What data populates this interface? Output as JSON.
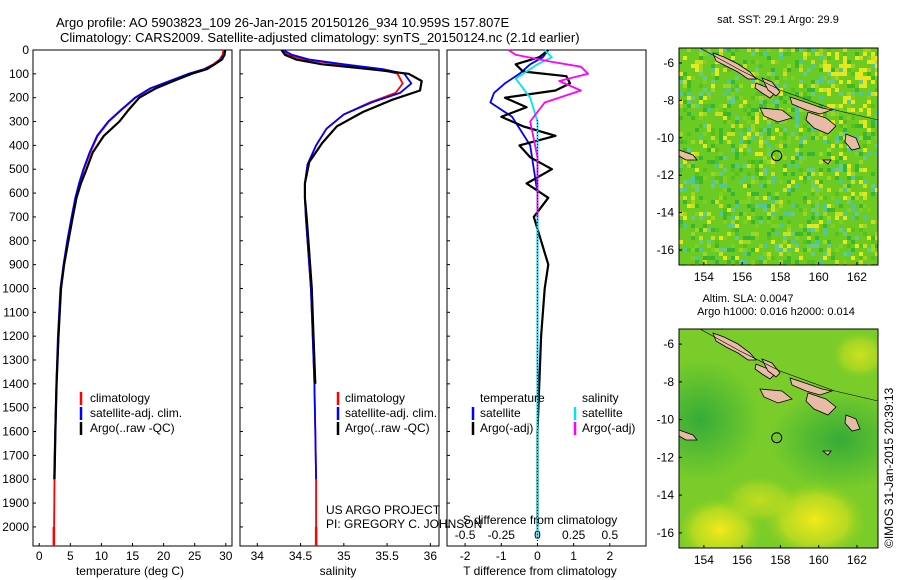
{
  "header": {
    "line1": "Argo profile: AO 5903823_109 26-Jan-2015 20150126_934 10.959S 157.807E",
    "line2": "Climatology: CARS2009. Satellite-adjusted climatology: synTS_20150124.nc (2.1d earlier)"
  },
  "colors": {
    "climatology": "#ff0000",
    "satellite": "#0000ff",
    "argo": "#000000",
    "sal_satellite": "#00e5ee",
    "sal_argo": "#ff00ff",
    "land": "#e8bba6"
  },
  "credit": {
    "project": "US ARGO PROJECT",
    "pi": "PI: GREGORY C. JOHNSON",
    "imos": "©IMOS 31-Jan-2015 20:39:13"
  },
  "chart_data": [
    {
      "type": "line",
      "id": "temperature",
      "xlabel": "temperature (deg C)",
      "ylabel": "",
      "xlim": [
        -1,
        31
      ],
      "ylim": [
        2080,
        0
      ],
      "xticks": [
        "0",
        "5",
        "10",
        "15",
        "20",
        "25",
        "30"
      ],
      "yticks": [
        "0",
        "100",
        "200",
        "300",
        "400",
        "500",
        "600",
        "700",
        "800",
        "900",
        "1000",
        "1100",
        "1200",
        "1300",
        "1400",
        "1500",
        "1600",
        "1700",
        "1800",
        "1900",
        "2000"
      ],
      "legend": [
        "climatology",
        "satellite-adj. clim.",
        "Argo(..raw -QC)"
      ],
      "series": [
        {
          "name": "climatology",
          "color": "climatology",
          "x": [
            29.6,
            29.5,
            29,
            28,
            26.5,
            24,
            21,
            18,
            15.5,
            13.3,
            11.2,
            9.4,
            8.2,
            7.2,
            6.5,
            5.9,
            5.3,
            4.6,
            4.0,
            3.5,
            3.1,
            2.8,
            2.6,
            2.45,
            2.4,
            2.35
          ],
          "y": [
            0,
            20,
            40,
            60,
            80,
            100,
            130,
            160,
            200,
            250,
            300,
            360,
            430,
            500,
            560,
            620,
            700,
            800,
            900,
            1000,
            1200,
            1400,
            1600,
            1800,
            2000,
            2050
          ]
        },
        {
          "name": "satellite-adj. clim.",
          "color": "satellite",
          "x": [
            29.9,
            29.7,
            29.2,
            28.2,
            26.6,
            24,
            21,
            17.9,
            15.4,
            13.2,
            11.1,
            9.3,
            8.1,
            7.1,
            6.4,
            5.8,
            5.2,
            4.5,
            3.9,
            3.4,
            3.0,
            2.75,
            2.55,
            2.4
          ],
          "y": [
            0,
            20,
            40,
            60,
            80,
            100,
            130,
            160,
            200,
            250,
            300,
            360,
            430,
            500,
            560,
            620,
            700,
            800,
            900,
            1000,
            1200,
            1400,
            1600,
            1800
          ]
        },
        {
          "name": "Argo(..raw -QC)",
          "color": "argo",
          "x": [
            29.9,
            29.8,
            29.4,
            28.2,
            27.0,
            24.5,
            21.6,
            18.8,
            16.1,
            14.4,
            12.9,
            10.4,
            8.6,
            7.6,
            6.7,
            6.0,
            5.4,
            4.7,
            4.0,
            3.5,
            3.1,
            2.8,
            2.6,
            2.45
          ],
          "y": [
            0,
            20,
            40,
            60,
            80,
            100,
            130,
            160,
            200,
            250,
            300,
            360,
            430,
            500,
            560,
            620,
            700,
            800,
            900,
            1000,
            1200,
            1400,
            1600,
            1800
          ]
        }
      ]
    },
    {
      "type": "line",
      "id": "salinity",
      "xlabel": "salinity",
      "xlim": [
        33.8,
        36.1
      ],
      "ylim": [
        2080,
        0
      ],
      "xticks": [
        "34",
        "34.5",
        "35",
        "35.5",
        "36"
      ],
      "legend": [
        "climatology",
        "satellite-adj. clim.",
        "Argo(..raw -QC)"
      ],
      "series": [
        {
          "name": "climatology",
          "color": "climatology",
          "x": [
            34.3,
            34.35,
            34.55,
            34.95,
            35.4,
            35.62,
            35.68,
            35.6,
            35.3,
            35.0,
            34.8,
            34.68,
            34.58,
            34.55,
            34.55,
            34.56,
            34.58,
            34.6,
            34.62,
            34.64,
            34.66,
            34.67,
            34.68,
            34.68,
            34.68
          ],
          "y": [
            0,
            20,
            40,
            60,
            80,
            100,
            140,
            180,
            220,
            270,
            330,
            400,
            480,
            560,
            620,
            700,
            800,
            900,
            1000,
            1200,
            1400,
            1600,
            1800,
            2000,
            2050
          ]
        },
        {
          "name": "satellite-adj. clim.",
          "color": "satellite",
          "x": [
            34.3,
            34.4,
            34.6,
            35.0,
            35.45,
            35.7,
            35.78,
            35.65,
            35.32,
            35.0,
            34.8,
            34.68,
            34.58,
            34.55,
            34.55,
            34.56,
            34.58,
            34.6,
            34.62,
            34.64,
            34.66,
            34.67,
            34.68
          ],
          "y": [
            0,
            20,
            40,
            60,
            80,
            100,
            140,
            180,
            220,
            270,
            330,
            400,
            480,
            560,
            620,
            700,
            800,
            900,
            1000,
            1200,
            1400,
            1600,
            1800
          ]
        },
        {
          "name": "Argo(..raw -QC)",
          "color": "argo",
          "x": [
            34.28,
            34.32,
            34.45,
            34.75,
            35.3,
            35.75,
            35.9,
            35.88,
            35.55,
            35.22,
            34.92,
            34.75,
            34.6,
            34.55,
            34.55,
            34.57,
            34.59,
            34.61,
            34.63,
            34.65,
            34.67
          ],
          "y": [
            0,
            20,
            40,
            60,
            80,
            100,
            130,
            170,
            210,
            260,
            320,
            390,
            470,
            560,
            620,
            700,
            800,
            900,
            1000,
            1200,
            1400
          ]
        }
      ]
    },
    {
      "type": "line",
      "id": "difference",
      "xlabel": "T difference from climatology",
      "xlabel_top": "S difference from climatology",
      "xlim": [
        -2.5,
        3.0
      ],
      "ylim": [
        2080,
        0
      ],
      "xticks": [
        "-2",
        "-1",
        "0",
        "1",
        "2"
      ],
      "xticks_top": [
        "-0.5",
        "-0.25",
        "0",
        "0.25",
        "0.5"
      ],
      "legend_titles": [
        "temperature",
        "salinity"
      ],
      "legend": [
        "satellite",
        "Argo(-adj)",
        "satellite",
        "Argo(-adj)"
      ],
      "series": [
        {
          "name": "temperature satellite",
          "color": "satellite",
          "x": [
            0.3,
            0.15,
            -0.2,
            -0.5,
            -0.9,
            -1.2,
            -1.3,
            -0.7,
            -0.2,
            0,
            0,
            0,
            0,
            0
          ],
          "y": [
            0,
            30,
            60,
            100,
            140,
            180,
            220,
            280,
            400,
            600,
            1000,
            1400,
            1800,
            2050
          ]
        },
        {
          "name": "temperature Argo(-adj)",
          "color": "argo",
          "x": [
            0.3,
            0.05,
            -0.6,
            -0.4,
            0.8,
            0.9,
            0.5,
            -0.9,
            -0.3,
            -1.0,
            -0.4,
            0.5,
            -0.5,
            -0.2,
            0.4,
            -0.3,
            0.3,
            -0.1,
            0.1,
            0.3,
            0.2,
            0.1,
            0.0,
            0.0
          ],
          "y": [
            0,
            30,
            60,
            90,
            110,
            140,
            170,
            200,
            240,
            280,
            320,
            360,
            400,
            450,
            500,
            560,
            620,
            700,
            800,
            900,
            1000,
            1200,
            1600,
            2000
          ]
        },
        {
          "name": "salinity satellite",
          "color": "sal_satellite",
          "x": [
            0.05,
            0.1,
            0.0,
            -0.15,
            -0.05,
            0.0,
            0.0,
            0.0,
            0.0,
            0.0
          ],
          "y": [
            0,
            30,
            60,
            120,
            200,
            300,
            400,
            700,
            1200,
            2050
          ]
        },
        {
          "name": "salinity Argo(-adj)",
          "color": "sal_argo",
          "x": [
            -0.2,
            -0.15,
            0.1,
            0.3,
            0.35,
            0.15,
            0.3,
            0.05,
            -0.05,
            0.0,
            0.0
          ],
          "y": [
            0,
            20,
            50,
            70,
            100,
            130,
            170,
            220,
            300,
            450,
            700
          ]
        }
      ]
    },
    {
      "type": "heatmap",
      "id": "sst_map",
      "title": "sat. SST: 29.1  Argo: 29.9",
      "xlim": [
        152.7,
        163.1
      ],
      "ylim": [
        -16.8,
        -5.2
      ],
      "xticks": [
        "154",
        "156",
        "158",
        "160",
        "162"
      ],
      "yticks": [
        "-6",
        "-8",
        "-10",
        "-12",
        "-14",
        "-16"
      ],
      "marker": {
        "lon": 157.807,
        "lat": -10.959
      }
    },
    {
      "type": "heatmap",
      "id": "sla_map",
      "title": "Altim. SLA: 0.0047",
      "subtitle": "Argo h1000: 0.016 h2000: 0.014",
      "xlim": [
        152.7,
        163.1
      ],
      "ylim": [
        -16.8,
        -5.2
      ],
      "xticks": [
        "154",
        "156",
        "158",
        "160",
        "162"
      ],
      "yticks": [
        "-6",
        "-8",
        "-10",
        "-12",
        "-14",
        "-16"
      ],
      "marker": {
        "lon": 157.807,
        "lat": -10.959
      }
    }
  ]
}
